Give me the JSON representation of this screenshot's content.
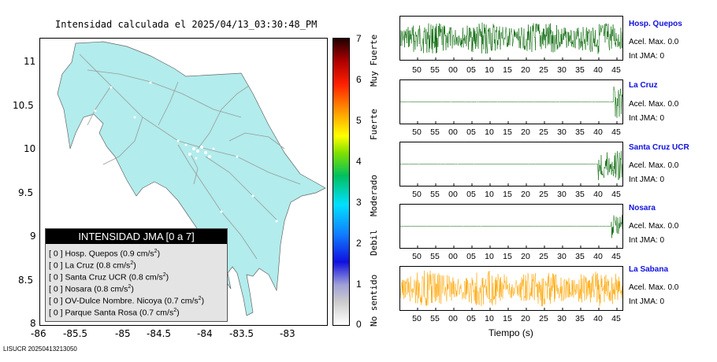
{
  "map_title": "Intensidad calculada el 2025/04/13_03:30:48_PM",
  "map": {
    "x_ticks": [
      "-86",
      "-85.5",
      "-85",
      "-84.5",
      "-84",
      "-83.5",
      "-83"
    ],
    "y_ticks": [
      "11",
      "10.5",
      "10",
      "9.5",
      "9",
      "8.5",
      "8"
    ],
    "land_color": "#b2ecec",
    "road_color": "#9a9a9a"
  },
  "legend": {
    "title": "INTENSIDAD JMA [0 a 7]",
    "rows": [
      {
        "jma": "[ 0 ]",
        "station": "Hosp. Quepos",
        "value": "(0.9 cm/s",
        "sup": "2",
        "close": ")"
      },
      {
        "jma": "[ 0 ]",
        "station": "La Cruz",
        "value": "(0.8 cm/s",
        "sup": "2",
        "close": ")"
      },
      {
        "jma": "[ 0 ]",
        "station": "Santa Cruz UCR",
        "value": "(0.8 cm/s",
        "sup": "2",
        "close": ")"
      },
      {
        "jma": "[ 0 ]",
        "station": "Nosara",
        "value": "(0.8 cm/s",
        "sup": "2",
        "close": ")"
      },
      {
        "jma": "[ 0 ]",
        "station": "OV-Dulce Nombre. Nicoya",
        "value": "(0.7 cm/s",
        "sup": "2",
        "close": ")"
      },
      {
        "jma": "[ 0 ]",
        "station": "Parque Santa Rosa",
        "value": "(0.7 cm/s",
        "sup": "2",
        "close": ")"
      }
    ]
  },
  "colorbar": {
    "ticks": [
      "7",
      "6",
      "5",
      "4",
      "3",
      "2",
      "1",
      "0"
    ],
    "words": [
      "Muy Fuerte",
      "Fuerte",
      "Moderado",
      "Debil",
      "No sentido"
    ]
  },
  "chart_data": [
    {
      "type": "line",
      "title": "Hosp. Quepos",
      "x_tick_labels": [
        "50",
        "55",
        "00",
        "05",
        "10",
        "15",
        "20",
        "25",
        "30",
        "35",
        "40",
        "45"
      ],
      "xlabel": "Tiempo (s)",
      "color": "#006400",
      "acel_label": "Acel. Max. 0.0",
      "jma_label": "Int JMA: 0",
      "signal_onset_fraction": 0.0,
      "amplitude_relative": 0.8
    },
    {
      "type": "line",
      "title": "La Cruz",
      "x_tick_labels": [
        "50",
        "55",
        "00",
        "05",
        "10",
        "15",
        "20",
        "25",
        "30",
        "35",
        "40",
        "45"
      ],
      "color": "#006400",
      "acel_label": "Acel. Max. 0.0",
      "jma_label": "Int JMA: 0",
      "signal_onset_fraction": 0.96,
      "amplitude_relative": 0.9
    },
    {
      "type": "line",
      "title": "Santa Cruz UCR",
      "x_tick_labels": [
        "50",
        "55",
        "00",
        "05",
        "10",
        "15",
        "20",
        "25",
        "30",
        "35",
        "40",
        "45"
      ],
      "color": "#006400",
      "acel_label": "Acel. Max. 0.0",
      "jma_label": "Int JMA: 0",
      "signal_onset_fraction": 0.89,
      "amplitude_relative": 0.8
    },
    {
      "type": "line",
      "title": "Nosara",
      "x_tick_labels": [
        "50",
        "55",
        "00",
        "05",
        "10",
        "15",
        "20",
        "25",
        "30",
        "35",
        "40",
        "45"
      ],
      "color": "#006400",
      "acel_label": "Acel. Max. 0.0",
      "jma_label": "Int JMA: 0",
      "signal_onset_fraction": 0.95,
      "amplitude_relative": 0.6
    },
    {
      "type": "line",
      "title": "La Sabana",
      "x_tick_labels": [
        "50",
        "55",
        "00",
        "05",
        "10",
        "15",
        "20",
        "25",
        "30",
        "35",
        "40",
        "45"
      ],
      "color": "#ffa500",
      "acel_label": "Acel. Max. 0.0",
      "jma_label": "Int JMA: 0",
      "signal_onset_fraction": 0.0,
      "amplitude_relative": 0.9
    }
  ],
  "footer_id": "LISUCR 20250413213050"
}
